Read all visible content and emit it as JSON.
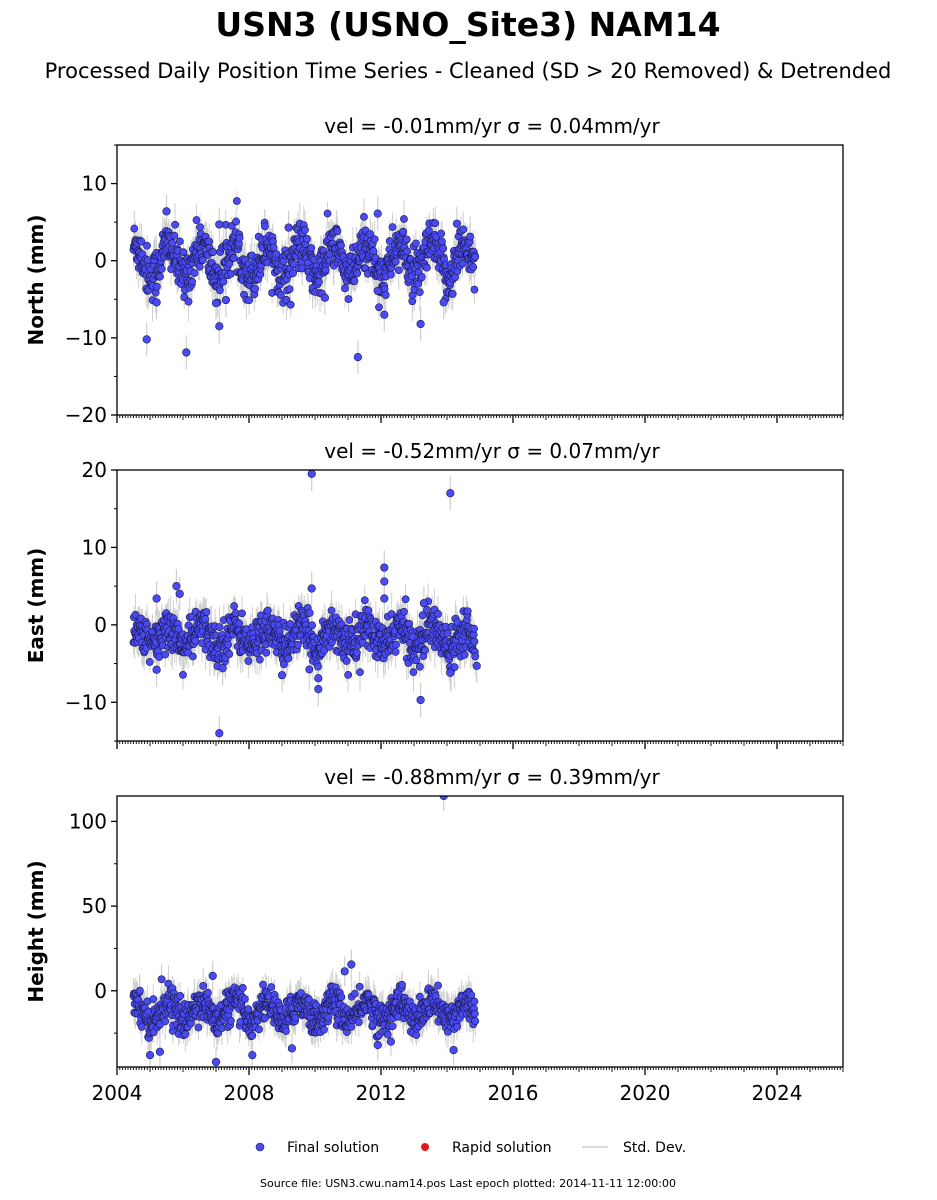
{
  "title": "USN3 (USNO_Site3) NAM14",
  "subtitle": "Processed Daily Position Time Series - Cleaned (SD > 20 Removed) & Detrended",
  "footer": "Source file: USN3.cwu.nam14.pos  Last epoch plotted: 2014-11-11 12:00:00",
  "legend": [
    {
      "label": "Final solution",
      "color": "#4a4af5"
    },
    {
      "label": "Rapid solution",
      "color": "#e31a1c"
    },
    {
      "label": "Std. Dev.",
      "color": "#cfcfcf"
    }
  ],
  "chart_data": [
    {
      "type": "scatter",
      "panel_title": "vel = -0.01mm/yr   σ = 0.04mm/yr",
      "ylabel": "North (mm)",
      "xlim": [
        2004,
        2026
      ],
      "ylim": [
        -20,
        15
      ],
      "yticks": [
        -20,
        -10,
        0,
        10
      ],
      "ytick_labels": [
        "−20",
        "−10",
        "0",
        "10"
      ],
      "xticks": [
        2004,
        2008,
        2012,
        2016,
        2020,
        2024
      ],
      "data_range": [
        2004.5,
        2014.86
      ],
      "band": {
        "center": 0,
        "amplitude": 2,
        "half_width": 3.5,
        "err": 2.0
      },
      "outliers": [
        {
          "x": 2005.5,
          "y": 6.4
        },
        {
          "x": 2004.9,
          "y": -10.2
        },
        {
          "x": 2006.1,
          "y": -11.9
        },
        {
          "x": 2007.1,
          "y": -8.5
        },
        {
          "x": 2007.0,
          "y": -5.5
        },
        {
          "x": 2007.3,
          "y": -5.1
        },
        {
          "x": 2011.9,
          "y": 6.1
        },
        {
          "x": 2011.3,
          "y": -12.5
        },
        {
          "x": 2011.9,
          "y": -3.9
        },
        {
          "x": 2012.1,
          "y": -7.0
        },
        {
          "x": 2013.2,
          "y": -8.2
        },
        {
          "x": 2013.9,
          "y": -5.4
        },
        {
          "x": 2009.2,
          "y": 4.3
        },
        {
          "x": 2010.3,
          "y": -4.8
        },
        {
          "x": 2014.3,
          "y": 4.8
        },
        {
          "x": 2007.1,
          "y": 4.7
        },
        {
          "x": 2005.2,
          "y": -5.4
        }
      ]
    },
    {
      "type": "scatter",
      "panel_title": "vel = -0.52mm/yr   σ = 0.07mm/yr",
      "ylabel": "East (mm)",
      "xlim": [
        2004,
        2026
      ],
      "ylim": [
        -15,
        20
      ],
      "yticks": [
        -10,
        0,
        10,
        20
      ],
      "ytick_labels": [
        "−10",
        "0",
        "10",
        "20"
      ],
      "xticks": [
        2004,
        2008,
        2012,
        2016,
        2020,
        2024
      ],
      "data_range": [
        2004.5,
        2014.86
      ],
      "band": {
        "center": -1.5,
        "amplitude": 1.2,
        "half_width": 3.0,
        "err": 2.0
      },
      "outliers": [
        {
          "x": 2009.9,
          "y": 19.5
        },
        {
          "x": 2014.1,
          "y": 17.0
        },
        {
          "x": 2012.1,
          "y": 7.4
        },
        {
          "x": 2012.1,
          "y": 5.6
        },
        {
          "x": 2012.1,
          "y": 3.4
        },
        {
          "x": 2005.8,
          "y": 5.0
        },
        {
          "x": 2009.9,
          "y": 4.7
        },
        {
          "x": 2005.2,
          "y": 3.4
        },
        {
          "x": 2013.3,
          "y": 2.8
        },
        {
          "x": 2007.1,
          "y": -14.0
        },
        {
          "x": 2013.2,
          "y": -9.7
        },
        {
          "x": 2010.1,
          "y": -8.3
        },
        {
          "x": 2010.1,
          "y": -6.9
        },
        {
          "x": 2014.1,
          "y": -6.2
        },
        {
          "x": 2014.9,
          "y": -5.3
        },
        {
          "x": 2005.2,
          "y": -5.8
        },
        {
          "x": 2009.0,
          "y": -6.5
        },
        {
          "x": 2007.2,
          "y": -5.6
        },
        {
          "x": 2005.9,
          "y": 4.0
        }
      ]
    },
    {
      "type": "scatter",
      "panel_title": "vel = -0.88mm/yr   σ = 0.39mm/yr",
      "ylabel": "Height (mm)",
      "xlim": [
        2004,
        2026
      ],
      "ylim": [
        -45,
        115
      ],
      "yticks": [
        0,
        50,
        100
      ],
      "ytick_labels": [
        "0",
        "50",
        "100"
      ],
      "xticks": [
        2004,
        2008,
        2012,
        2016,
        2020,
        2024
      ],
      "data_range": [
        2004.5,
        2014.86
      ],
      "band": {
        "center": -12,
        "amplitude": 6,
        "half_width": 11,
        "err": 8
      },
      "outliers": [
        {
          "x": 2013.9,
          "y": 115.0
        },
        {
          "x": 2011.1,
          "y": 15.5
        },
        {
          "x": 2006.9,
          "y": 8.8
        },
        {
          "x": 2010.9,
          "y": 11.5
        },
        {
          "x": 2007.0,
          "y": -42.0
        },
        {
          "x": 2008.1,
          "y": -38.0
        },
        {
          "x": 2005.0,
          "y": -38.0
        },
        {
          "x": 2011.9,
          "y": -32.0
        },
        {
          "x": 2014.2,
          "y": -35.0
        },
        {
          "x": 2012.3,
          "y": -30.0
        },
        {
          "x": 2009.3,
          "y": -34.0
        },
        {
          "x": 2005.3,
          "y": -36.0
        }
      ]
    }
  ]
}
